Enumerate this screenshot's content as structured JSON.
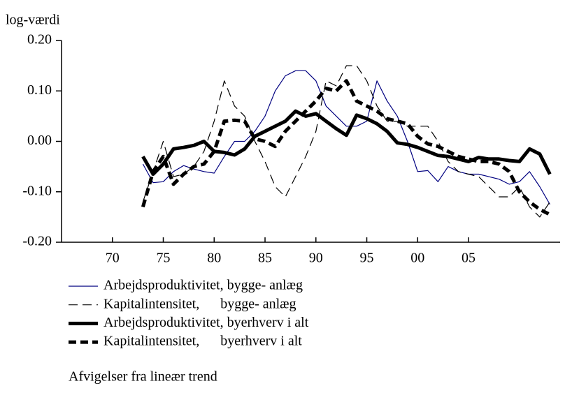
{
  "chart_data": {
    "type": "line",
    "y_axis_label": "log-værdi",
    "note": "Afvigelser fra lineær trend",
    "xlim": [
      65,
      114
    ],
    "xticks": [
      70,
      75,
      80,
      85,
      90,
      95,
      {
        "value": 100,
        "label": "00"
      },
      {
        "value": 105,
        "label": "05"
      }
    ],
    "ylim": [
      -0.2,
      0.2
    ],
    "yticks": [
      {
        "value": 0.2,
        "label": "0.20"
      },
      {
        "value": 0.1,
        "label": "0.10"
      },
      {
        "value": 0,
        "label": "0.00"
      },
      {
        "value": -0.1,
        "label": "-0.10"
      },
      {
        "value": -0.2,
        "label": "-0.20"
      }
    ],
    "x": [
      73,
      74,
      75,
      76,
      77,
      78,
      79,
      80,
      81,
      82,
      83,
      84,
      85,
      86,
      87,
      88,
      89,
      90,
      91,
      92,
      93,
      94,
      95,
      96,
      97,
      98,
      99,
      100,
      101,
      102,
      103,
      104,
      105,
      106,
      107,
      108,
      109,
      110,
      111,
      112,
      113
    ],
    "series": [
      {
        "name": "Arbejdsproduktivitet, bygge- anlæg",
        "color": "#000080",
        "line_style": "solid",
        "weight": "thin",
        "values": [
          -0.045,
          -0.082,
          -0.08,
          -0.06,
          -0.048,
          -0.055,
          -0.06,
          -0.063,
          -0.03,
          0.0,
          0.0,
          0.02,
          0.05,
          0.1,
          0.13,
          0.14,
          0.14,
          0.12,
          0.07,
          0.05,
          0.03,
          0.03,
          0.04,
          0.12,
          0.08,
          0.05,
          0.0,
          -0.06,
          -0.058,
          -0.08,
          -0.05,
          -0.06,
          -0.065,
          -0.065,
          -0.07,
          -0.075,
          -0.085,
          -0.08,
          -0.06,
          -0.09,
          -0.125
        ]
      },
      {
        "name": "Kapitalintensitet,      bygge- anlæg",
        "color": "#000000",
        "line_style": "dashed",
        "weight": "thin",
        "values": [
          -0.12,
          -0.06,
          0.0,
          -0.07,
          -0.065,
          -0.05,
          -0.02,
          0.04,
          0.12,
          0.07,
          0.05,
          0.0,
          -0.04,
          -0.09,
          -0.11,
          -0.07,
          -0.03,
          0.02,
          0.12,
          0.11,
          0.15,
          0.15,
          0.12,
          0.07,
          0.04,
          0.04,
          0.03,
          0.03,
          0.03,
          0.0,
          -0.04,
          -0.06,
          -0.065,
          -0.07,
          -0.09,
          -0.11,
          -0.11,
          -0.09,
          -0.13,
          -0.15,
          -0.12
        ]
      },
      {
        "name": "Arbejdsproduktivitet, byerhverv i alt",
        "color": "#000000",
        "line_style": "solid",
        "weight": "thick",
        "values": [
          -0.03,
          -0.065,
          -0.045,
          -0.015,
          -0.012,
          -0.008,
          0.0,
          -0.02,
          -0.022,
          -0.027,
          -0.015,
          0.01,
          0.02,
          0.03,
          0.04,
          0.06,
          0.05,
          0.055,
          0.04,
          0.025,
          0.012,
          0.052,
          0.045,
          0.035,
          0.02,
          -0.003,
          -0.006,
          -0.012,
          -0.02,
          -0.028,
          -0.03,
          -0.035,
          -0.04,
          -0.032,
          -0.035,
          -0.035,
          -0.038,
          -0.04,
          -0.015,
          -0.025,
          -0.065
        ]
      },
      {
        "name": "Kapitalintensitet,      byerhverv i alt",
        "color": "#000000",
        "line_style": "dashed",
        "weight": "thick",
        "values": [
          -0.13,
          -0.06,
          -0.03,
          -0.085,
          -0.065,
          -0.05,
          -0.045,
          -0.02,
          0.04,
          0.042,
          0.04,
          0.005,
          0.0,
          -0.01,
          0.02,
          0.04,
          0.06,
          0.08,
          0.105,
          0.1,
          0.12,
          0.08,
          0.07,
          0.06,
          0.045,
          0.04,
          0.035,
          0.01,
          -0.005,
          -0.01,
          -0.02,
          -0.03,
          -0.035,
          -0.04,
          -0.04,
          -0.045,
          -0.06,
          -0.1,
          -0.12,
          -0.135,
          -0.145
        ]
      }
    ]
  }
}
